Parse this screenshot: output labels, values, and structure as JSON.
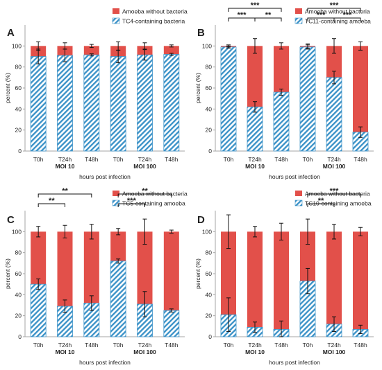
{
  "figure": {
    "colors": {
      "red": "#e2504a",
      "blue": "#3d93c8",
      "axis": "#a6a6a6",
      "ink": "#222222"
    }
  },
  "chart_data": [
    {
      "type": "bar",
      "stacked": true,
      "panel": "A",
      "categories": [
        "T0h",
        "T24h",
        "T48h",
        "T0h",
        "T24h",
        "T48h"
      ],
      "groups": [
        "MOI 10",
        "MOI 100"
      ],
      "xlabel": "hours post infection",
      "ylabel": "percent  (%)",
      "ylim": [
        0,
        120
      ],
      "yticks": [
        0,
        20,
        40,
        60,
        80,
        100
      ],
      "legend": [
        "Amoeba without bacteria",
        "TC4-containing bacteria"
      ],
      "series": [
        {
          "name": "TC4-containing bacteria",
          "color": "#3d93c8",
          "pattern": "hatch",
          "values": [
            90,
            91,
            91.5,
            90,
            91.5,
            92
          ],
          "errors": [
            7,
            6,
            1,
            6,
            5,
            1
          ]
        },
        {
          "name": "Amoeba without bacteria",
          "color": "#e2504a",
          "values": [
            10,
            9,
            8.5,
            10,
            8.5,
            8
          ],
          "errors": [
            4,
            3,
            1.5,
            4,
            3,
            1
          ]
        }
      ],
      "significance": []
    },
    {
      "type": "bar",
      "stacked": true,
      "panel": "B",
      "categories": [
        "T0h",
        "T24h",
        "T48h",
        "T0h",
        "T24h",
        "T48h"
      ],
      "groups": [
        "MOI 10",
        "MOI 100"
      ],
      "xlabel": "hours post infection",
      "ylabel": "percent  (%)",
      "ylim": [
        0,
        120
      ],
      "yticks": [
        0,
        20,
        40,
        60,
        80,
        100
      ],
      "legend": [
        "Amoeba without bacteria",
        "TC11-containing amoeba"
      ],
      "series": [
        {
          "name": "TC11-containing amoeba",
          "color": "#3d93c8",
          "pattern": "hatch",
          "values": [
            99,
            42,
            56,
            99,
            70,
            18
          ],
          "errors": [
            1,
            5,
            3,
            2,
            6,
            5
          ]
        },
        {
          "name": "Amoeba without bacteria",
          "color": "#e2504a",
          "values": [
            1,
            58,
            44,
            1,
            30,
            82
          ],
          "errors": [
            1,
            7,
            3,
            2,
            7,
            4
          ]
        }
      ],
      "significance": [
        {
          "from": 0,
          "to": 1,
          "label": "***",
          "level": 0
        },
        {
          "from": 1,
          "to": 2,
          "label": "**",
          "level": 0
        },
        {
          "from": 0,
          "to": 2,
          "label": "***",
          "level": 1
        },
        {
          "from": 3,
          "to": 4,
          "label": "***",
          "level": 0
        },
        {
          "from": 4,
          "to": 5,
          "label": "***",
          "level": 0
        },
        {
          "from": 3,
          "to": 5,
          "label": "***",
          "level": 1
        }
      ]
    },
    {
      "type": "bar",
      "stacked": true,
      "panel": "C",
      "categories": [
        "T0h",
        "T24h",
        "T48h",
        "T0h",
        "T24h",
        "T48h"
      ],
      "groups": [
        "MOI 10",
        "MOI 100"
      ],
      "xlabel": "hours post infection",
      "ylabel": "percent  (%)",
      "ylim": [
        0,
        120
      ],
      "yticks": [
        0,
        20,
        40,
        60,
        80,
        100
      ],
      "legend": [
        "Amoeba without bacteria",
        "TC5-containing amoeba"
      ],
      "series": [
        {
          "name": "TC5-containing amoeba",
          "color": "#3d93c8",
          "pattern": "hatch",
          "values": [
            50,
            29,
            32,
            72,
            31,
            25
          ],
          "errors": [
            5,
            6,
            7,
            2,
            12,
            1.5
          ]
        },
        {
          "name": "Amoeba without bacteria",
          "color": "#e2504a",
          "values": [
            50,
            71,
            68,
            28,
            69,
            75
          ],
          "errors": [
            5,
            6,
            7,
            3,
            12,
            1.5
          ]
        }
      ],
      "significance": [
        {
          "from": 0,
          "to": 1,
          "label": "**",
          "level": 0
        },
        {
          "from": 0,
          "to": 2,
          "label": "**",
          "level": 1
        },
        {
          "from": 3,
          "to": 4,
          "label": "***",
          "level": 0
        },
        {
          "from": 3,
          "to": 5,
          "label": "**",
          "level": 1
        }
      ]
    },
    {
      "type": "bar",
      "stacked": true,
      "panel": "D",
      "categories": [
        "T0h",
        "T24h",
        "T48h",
        "T0h",
        "T24h",
        "T48h"
      ],
      "groups": [
        "MOI 10",
        "MOI 100"
      ],
      "xlabel": "hours post infection",
      "ylabel": "percent  (%)",
      "ylim": [
        0,
        120
      ],
      "yticks": [
        0,
        20,
        40,
        60,
        80,
        100
      ],
      "legend": [
        "Amoeba without bacteria",
        "TC10-containing amoeba"
      ],
      "series": [
        {
          "name": "TC10-containing amoeba",
          "color": "#3d93c8",
          "pattern": "hatch",
          "values": [
            21,
            9,
            7,
            53,
            12,
            7
          ],
          "errors": [
            16,
            5,
            8,
            12,
            7,
            4
          ]
        },
        {
          "name": "Amoeba without bacteria",
          "color": "#e2504a",
          "values": [
            79,
            91,
            93,
            47,
            88,
            93
          ],
          "errors": [
            16,
            5,
            8,
            12,
            7,
            4
          ]
        }
      ],
      "significance": [
        {
          "from": 3,
          "to": 4,
          "label": "**",
          "level": 0
        },
        {
          "from": 3,
          "to": 5,
          "label": "***",
          "level": 1
        }
      ]
    }
  ]
}
